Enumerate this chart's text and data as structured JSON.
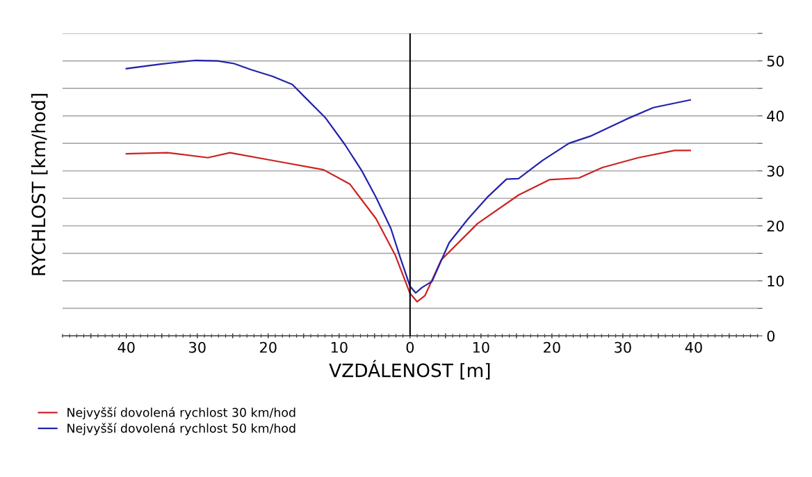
{
  "chart_data": {
    "type": "line",
    "xlabel": "VZDÁLENOST [m]",
    "ylabel": "RYCHLOST [km/hod]",
    "xlim": [
      -49,
      49
    ],
    "ylim": [
      0,
      55
    ],
    "xticks": [
      {
        "value": -45,
        "label": null
      },
      {
        "value": -40,
        "label": "40"
      },
      {
        "value": -35,
        "label": null
      },
      {
        "value": -30,
        "label": "30"
      },
      {
        "value": -25,
        "label": null
      },
      {
        "value": -20,
        "label": "20"
      },
      {
        "value": -15,
        "label": null
      },
      {
        "value": -10,
        "label": "10"
      },
      {
        "value": -5,
        "label": null
      },
      0,
      {
        "value": 5,
        "label": null
      },
      10,
      {
        "value": 15,
        "label": null
      },
      20,
      {
        "value": 25,
        "label": null
      },
      30,
      {
        "value": 35,
        "label": null
      },
      40,
      {
        "value": 45,
        "label": null
      }
    ],
    "yticks": [
      0,
      {
        "value": 5,
        "label": null
      },
      10,
      {
        "value": 15,
        "label": null
      },
      20,
      {
        "value": 25,
        "label": null
      },
      30,
      {
        "value": 35,
        "label": null
      },
      40,
      {
        "value": 45,
        "label": null
      },
      50,
      {
        "value": 55,
        "label": null
      }
    ],
    "grid": "y",
    "legend": "bottom left",
    "line_style": "solid",
    "marker": "none",
    "ref_lines": [
      {
        "axis": "x",
        "value": 0,
        "color": "#000000"
      }
    ],
    "series": [
      {
        "name": "Nejvyšší dovolená rychlost 30 km/hod",
        "color": "#cc2222",
        "x": [
          -40,
          -34.2,
          -28.5,
          -25.4,
          -19.0,
          -12.2,
          -8.5,
          -4.8,
          -2.1,
          0,
          1.0,
          2.1,
          4.4,
          9.5,
          15.3,
          19.7,
          23.8,
          27.1,
          32.2,
          37.3,
          39.5
        ],
        "values": [
          33.1,
          33.3,
          32.4,
          33.3,
          31.8,
          30.2,
          27.6,
          21.3,
          14.7,
          7.7,
          6.2,
          7.3,
          13.8,
          20.4,
          25.6,
          28.4,
          28.7,
          30.6,
          32.4,
          33.7,
          33.7
        ]
      },
      {
        "name": "Nejvyšší dovolená rychlost 50 km/hod",
        "color": "#2222aa",
        "x": [
          -40,
          -35.3,
          -30.2,
          -27.1,
          -24.8,
          -22.4,
          -19.4,
          -16.6,
          -14.6,
          -11.9,
          -9.2,
          -6.8,
          -4.8,
          -2.7,
          -1.4,
          0,
          0.8,
          1.7,
          3.1,
          5.5,
          8.2,
          10.9,
          13.6,
          15.3,
          18.7,
          22.4,
          25.4,
          30.5,
          34.3,
          39.5
        ],
        "values": [
          48.6,
          49.4,
          50.1,
          50.0,
          49.5,
          48.4,
          47.2,
          45.7,
          43.1,
          39.6,
          34.8,
          30.0,
          25.2,
          19.5,
          14.3,
          9.0,
          7.8,
          8.8,
          9.9,
          16.9,
          21.3,
          25.2,
          28.5,
          28.6,
          31.9,
          35.0,
          36.3,
          39.4,
          41.5,
          42.9
        ]
      }
    ]
  }
}
